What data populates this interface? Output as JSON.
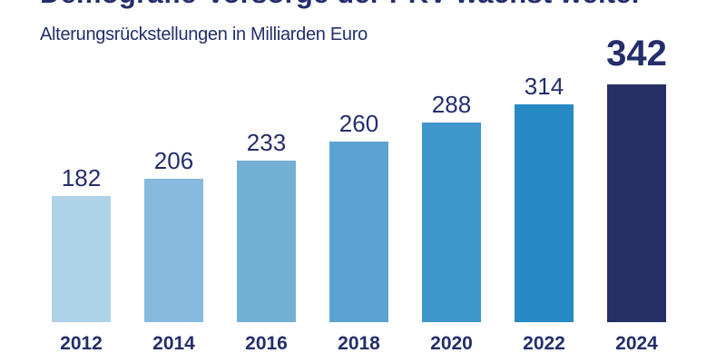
{
  "header": {
    "title": "Demografie-Vorsorge der PKV wächst weiter",
    "subtitle": "Alterungsrückstellungen in Milliarden Euro"
  },
  "chart_data": {
    "type": "bar",
    "title": "Demografie-Vorsorge der PKV wächst weiter",
    "subtitle": "Alterungsrückstellungen in Milliarden Euro",
    "xlabel": "",
    "ylabel": "Milliarden Euro",
    "categories": [
      "2012",
      "2014",
      "2016",
      "2018",
      "2020",
      "2022",
      "2024"
    ],
    "values": [
      182,
      206,
      233,
      260,
      288,
      314,
      342
    ],
    "value_labels": [
      "182",
      "206",
      "233",
      "260",
      "288",
      "314",
      "342"
    ],
    "ylim": [
      0,
      360
    ],
    "grid": false,
    "legend_position": "none",
    "bar_colors": [
      "#aed2e8",
      "#87bade",
      "#74b0d6",
      "#5ba3d0",
      "#3f96c8",
      "#2789c4",
      "#262f66"
    ],
    "highlight_index": 6,
    "highlight_color": "#262f66"
  },
  "colors": {
    "text_navy": "#242e6b",
    "background": "#ffffff"
  }
}
